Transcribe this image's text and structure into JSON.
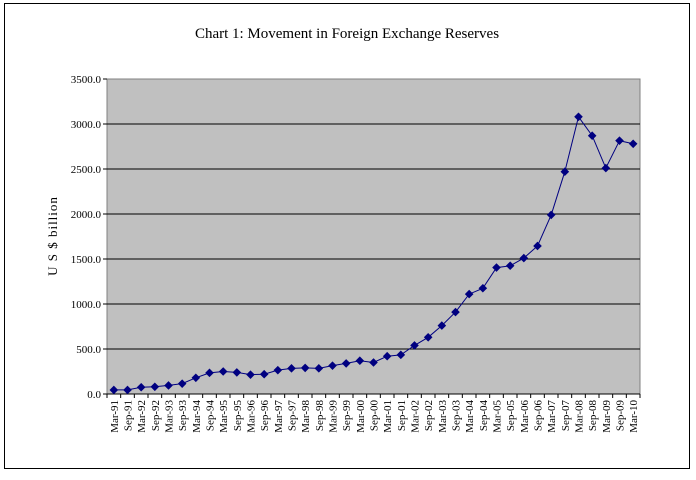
{
  "chart_data": {
    "type": "line",
    "title": "Chart 1: Movement in Foreign Exchange Reserves",
    "xlabel": "",
    "ylabel": "U S $ billion",
    "ylim": [
      0,
      3500
    ],
    "yticks": [
      0,
      500,
      1000,
      1500,
      2000,
      2500,
      3000,
      3500
    ],
    "ytick_labels": [
      "0.0",
      "500.0",
      "1000.0",
      "1500.0",
      "2000.0",
      "2500.0",
      "3000.0",
      "3500.0"
    ],
    "grid": "horizontal",
    "legend": "none",
    "plot_background": "#c0c0c0",
    "series_color": "#000080",
    "categories": [
      "Mar-91",
      "Sep-91",
      "Mar-92",
      "Sep-92",
      "Mar-93",
      "Sep-93",
      "Mar-94",
      "Sep-94",
      "Mar-95",
      "Sep-95",
      "Mar-96",
      "Sep-96",
      "Mar-97",
      "Sep-97",
      "Mar-98",
      "Sep-98",
      "Mar-99",
      "Sep-99",
      "Mar-00",
      "Sep-00",
      "Mar-01",
      "Sep-01",
      "Mar-02",
      "Sep-02",
      "Mar-03",
      "Sep-03",
      "Mar-04",
      "Sep-04",
      "Mar-05",
      "Sep-05",
      "Mar-06",
      "Sep-06",
      "Mar-07",
      "Sep-07",
      "Mar-08",
      "Sep-08",
      "Mar-09",
      "Sep-09",
      "Mar-10"
    ],
    "series": [
      {
        "values": [
          45,
          45,
          75,
          80,
          95,
          115,
          180,
          235,
          250,
          240,
          215,
          220,
          265,
          285,
          290,
          285,
          315,
          340,
          370,
          350,
          420,
          435,
          540,
          630,
          760,
          910,
          1110,
          1175,
          1405,
          1425,
          1510,
          1645,
          1990,
          2470,
          3080,
          2870,
          2510,
          2815,
          2780
        ]
      }
    ]
  }
}
